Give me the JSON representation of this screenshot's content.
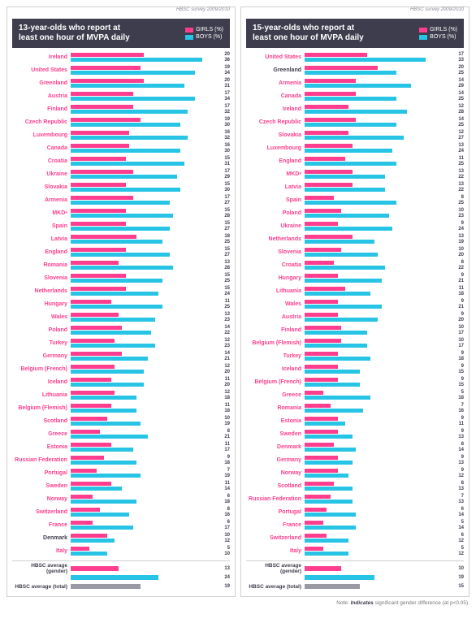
{
  "survey_tag": "HBSC survey 2009/2010",
  "colors": {
    "girls": "#ff3e8f",
    "boys": "#27c4e6",
    "total": "#9a9aa5",
    "header_bg": "#3d3d4d",
    "text": "#3d3d4d",
    "sig_label": "#ff3e8f"
  },
  "legend": {
    "girls": "GIRLS (%)",
    "boys": "BOYS (%)"
  },
  "max_value": 40,
  "panels": [
    {
      "title": "13-year-olds who report at\nleast one hour of MVPA daily",
      "rows": [
        {
          "c": "Ireland",
          "g": 20,
          "b": 36,
          "sig": true
        },
        {
          "c": "United States",
          "g": 19,
          "b": 34,
          "sig": true
        },
        {
          "c": "Greenland",
          "g": 20,
          "b": 31,
          "sig": true
        },
        {
          "c": "Austria",
          "g": 17,
          "b": 34,
          "sig": true
        },
        {
          "c": "Finland",
          "g": 17,
          "b": 32,
          "sig": true
        },
        {
          "c": "Czech Republic",
          "g": 19,
          "b": 30,
          "sig": true
        },
        {
          "c": "Luxembourg",
          "g": 16,
          "b": 32,
          "sig": true
        },
        {
          "c": "Canada",
          "g": 16,
          "b": 30,
          "sig": true
        },
        {
          "c": "Croatia",
          "g": 15,
          "b": 31,
          "sig": true
        },
        {
          "c": "Ukraine",
          "g": 17,
          "b": 29,
          "sig": true
        },
        {
          "c": "Slovakia",
          "g": 15,
          "b": 30,
          "sig": true
        },
        {
          "c": "Armenia",
          "g": 17,
          "b": 27,
          "sig": true
        },
        {
          "c": "MKDᵃ",
          "g": 15,
          "b": 28,
          "sig": true
        },
        {
          "c": "Spain",
          "g": 15,
          "b": 27,
          "sig": true
        },
        {
          "c": "Latvia",
          "g": 18,
          "b": 25,
          "sig": true
        },
        {
          "c": "England",
          "g": 15,
          "b": 27,
          "sig": true
        },
        {
          "c": "Romania",
          "g": 13,
          "b": 28,
          "sig": true
        },
        {
          "c": "Slovenia",
          "g": 15,
          "b": 25,
          "sig": true
        },
        {
          "c": "Netherlands",
          "g": 15,
          "b": 24,
          "sig": true
        },
        {
          "c": "Hungary",
          "g": 11,
          "b": 25,
          "sig": true
        },
        {
          "c": "Wales",
          "g": 13,
          "b": 23,
          "sig": true
        },
        {
          "c": "Poland",
          "g": 14,
          "b": 22,
          "sig": true
        },
        {
          "c": "Turkey",
          "g": 12,
          "b": 23,
          "sig": true
        },
        {
          "c": "Germany",
          "g": 14,
          "b": 21,
          "sig": true
        },
        {
          "c": "Belgium (French)",
          "g": 12,
          "b": 20,
          "sig": true
        },
        {
          "c": "Iceland",
          "g": 11,
          "b": 20,
          "sig": true
        },
        {
          "c": "Lithuania",
          "g": 12,
          "b": 18,
          "sig": true
        },
        {
          "c": "Belgium (Flemish)",
          "g": 11,
          "b": 18,
          "sig": true
        },
        {
          "c": "Scotland",
          "g": 10,
          "b": 19,
          "sig": true
        },
        {
          "c": "Greece",
          "g": 8,
          "b": 21,
          "sig": true
        },
        {
          "c": "Estonia",
          "g": 11,
          "b": 17,
          "sig": true
        },
        {
          "c": "Russian Federation",
          "g": 9,
          "b": 18,
          "sig": true
        },
        {
          "c": "Portugal",
          "g": 7,
          "b": 19,
          "sig": true
        },
        {
          "c": "Sweden",
          "g": 11,
          "b": 14,
          "sig": true
        },
        {
          "c": "Norway",
          "g": 6,
          "b": 18,
          "sig": true
        },
        {
          "c": "Switzerland",
          "g": 8,
          "b": 16,
          "sig": true
        },
        {
          "c": "France",
          "g": 6,
          "b": 17,
          "sig": true
        },
        {
          "c": "Denmark",
          "g": 10,
          "b": 12,
          "sig": false
        },
        {
          "c": "Italy",
          "g": 5,
          "b": 10,
          "sig": true
        }
      ],
      "avg": {
        "girls": 13,
        "boys": 24,
        "total": 19
      }
    },
    {
      "title": "15-year-olds who report at\nleast one hour of MVPA daily",
      "rows": [
        {
          "c": "United States",
          "g": 17,
          "b": 33,
          "sig": true
        },
        {
          "c": "Greenland",
          "g": 20,
          "b": 25,
          "sig": false
        },
        {
          "c": "Armenia",
          "g": 14,
          "b": 29,
          "sig": true
        },
        {
          "c": "Canada",
          "g": 14,
          "b": 25,
          "sig": true
        },
        {
          "c": "Ireland",
          "g": 12,
          "b": 28,
          "sig": true
        },
        {
          "c": "Czech Republic",
          "g": 14,
          "b": 25,
          "sig": true
        },
        {
          "c": "Slovakia",
          "g": 12,
          "b": 27,
          "sig": true
        },
        {
          "c": "Luxembourg",
          "g": 13,
          "b": 24,
          "sig": true
        },
        {
          "c": "England",
          "g": 11,
          "b": 25,
          "sig": true
        },
        {
          "c": "MKDᵃ",
          "g": 13,
          "b": 22,
          "sig": true
        },
        {
          "c": "Latvia",
          "g": 13,
          "b": 22,
          "sig": true
        },
        {
          "c": "Spain",
          "g": 8,
          "b": 25,
          "sig": true
        },
        {
          "c": "Poland",
          "g": 10,
          "b": 23,
          "sig": true
        },
        {
          "c": "Ukraine",
          "g": 9,
          "b": 24,
          "sig": true
        },
        {
          "c": "Netherlands",
          "g": 13,
          "b": 19,
          "sig": true
        },
        {
          "c": "Slovenia",
          "g": 10,
          "b": 20,
          "sig": true
        },
        {
          "c": "Croatia",
          "g": 8,
          "b": 22,
          "sig": true
        },
        {
          "c": "Hungary",
          "g": 9,
          "b": 21,
          "sig": true
        },
        {
          "c": "Lithuania",
          "g": 11,
          "b": 18,
          "sig": true
        },
        {
          "c": "Wales",
          "g": 9,
          "b": 21,
          "sig": true
        },
        {
          "c": "Austria",
          "g": 9,
          "b": 20,
          "sig": true
        },
        {
          "c": "Finland",
          "g": 10,
          "b": 17,
          "sig": true
        },
        {
          "c": "Belgium (Flemish)",
          "g": 10,
          "b": 17,
          "sig": true
        },
        {
          "c": "Turkey",
          "g": 9,
          "b": 18,
          "sig": true
        },
        {
          "c": "Iceland",
          "g": 9,
          "b": 15,
          "sig": true
        },
        {
          "c": "Belgium (French)",
          "g": 9,
          "b": 15,
          "sig": true
        },
        {
          "c": "Greece",
          "g": 5,
          "b": 18,
          "sig": true
        },
        {
          "c": "Romania",
          "g": 7,
          "b": 16,
          "sig": true
        },
        {
          "c": "Estonia",
          "g": 9,
          "b": 11,
          "sig": true
        },
        {
          "c": "Sweden",
          "g": 9,
          "b": 13,
          "sig": true
        },
        {
          "c": "Denmark",
          "g": 8,
          "b": 14,
          "sig": true
        },
        {
          "c": "Germany",
          "g": 9,
          "b": 13,
          "sig": true
        },
        {
          "c": "Norway",
          "g": 9,
          "b": 12,
          "sig": true
        },
        {
          "c": "Scotland",
          "g": 8,
          "b": 13,
          "sig": true
        },
        {
          "c": "Russian Federation",
          "g": 7,
          "b": 13,
          "sig": true
        },
        {
          "c": "Portugal",
          "g": 6,
          "b": 14,
          "sig": true
        },
        {
          "c": "France",
          "g": 5,
          "b": 14,
          "sig": true
        },
        {
          "c": "Switzerland",
          "g": 6,
          "b": 12,
          "sig": true
        },
        {
          "c": "Italy",
          "g": 5,
          "b": 12,
          "sig": true
        }
      ],
      "avg": {
        "girls": 10,
        "boys": 19,
        "total": 15
      }
    }
  ],
  "avg_labels": {
    "gender": "HBSC average (gender)",
    "total": "HBSC average (total)"
  },
  "footnote": {
    "prefix": "Note: ",
    "bold": "Indicates",
    "rest": " significant gender difference (at p<0.05)."
  }
}
